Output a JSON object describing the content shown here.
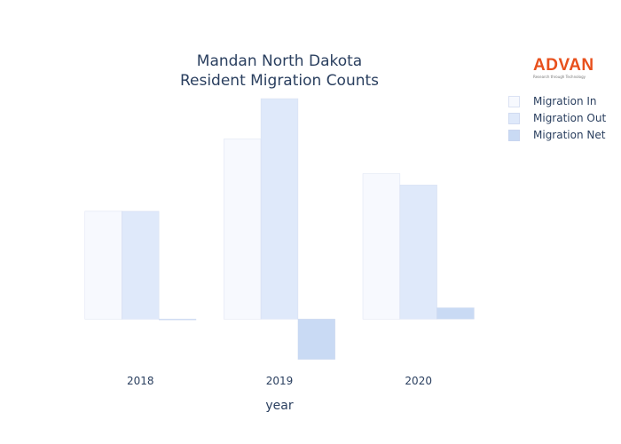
{
  "chart_data": {
    "type": "bar",
    "title_line1": "Mandan North Dakota",
    "title_line2": "Resident Migration Counts",
    "xlabel": "year",
    "ylabel": "",
    "categories": [
      "2018",
      "2019",
      "2020"
    ],
    "series": [
      {
        "name": "Migration In",
        "color": "#f7f9fe",
        "values": [
          1150,
          1920,
          1550
        ]
      },
      {
        "name": "Migration Out",
        "color": "#dfe9fa",
        "values": [
          1150,
          2350,
          1430
        ]
      },
      {
        "name": "Migration Net",
        "color": "#c9daf4",
        "values": [
          0,
          -430,
          120
        ]
      }
    ],
    "ylim": [
      -480,
      2550
    ],
    "grid": false,
    "legend_position": "top-right"
  },
  "logo": {
    "word": "ADVAN",
    "tagline": "Research through Technology",
    "color": "#e8501c"
  }
}
